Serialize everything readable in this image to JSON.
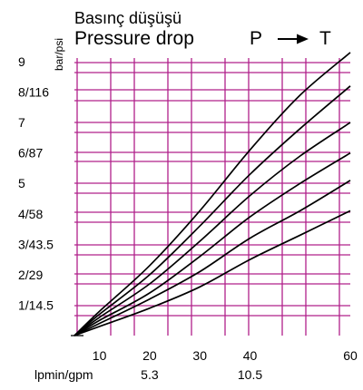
{
  "chart_data": {
    "type": "line",
    "title_line1": "Basınç düşüşü",
    "title_line2": "Pressure drop",
    "flow_from": "P",
    "flow_to": "T",
    "ylabel": "bar/psi",
    "xlabel": "lpmin/gpm",
    "xlim": [
      5,
      60
    ],
    "ylim": [
      0,
      9
    ],
    "x_ticks": [
      {
        "value": 10,
        "label": "10"
      },
      {
        "value": 20,
        "label": "20"
      },
      {
        "value": 30,
        "label": "30"
      },
      {
        "value": 40,
        "label": "40"
      },
      {
        "value": 60,
        "label": "60"
      }
    ],
    "x_secondary_ticks": [
      {
        "value": 20,
        "label": "5.3"
      },
      {
        "value": 40,
        "label": "10.5"
      }
    ],
    "y_ticks": [
      {
        "value": 9,
        "label": "9"
      },
      {
        "value": 8,
        "label": "8/116"
      },
      {
        "value": 7,
        "label": "7"
      },
      {
        "value": 6,
        "label": "6/87"
      },
      {
        "value": 5,
        "label": "5"
      },
      {
        "value": 4,
        "label": "4/58"
      },
      {
        "value": 3,
        "label": "3/43.5"
      },
      {
        "value": 2,
        "label": "2/29"
      },
      {
        "value": 1,
        "label": "1/14.5"
      }
    ],
    "grid": true,
    "grid_color": "#b0208a",
    "series": [
      {
        "values": [
          [
            5,
            0
          ],
          [
            10,
            0.8
          ],
          [
            20,
            2.3
          ],
          [
            30,
            4.1
          ],
          [
            40,
            6.1
          ],
          [
            50,
            7.9
          ],
          [
            60,
            9.3
          ]
        ]
      },
      {
        "values": [
          [
            5,
            0
          ],
          [
            10,
            0.7
          ],
          [
            20,
            2.0
          ],
          [
            30,
            3.6
          ],
          [
            40,
            5.3
          ],
          [
            50,
            6.8
          ],
          [
            60,
            8.2
          ]
        ]
      },
      {
        "values": [
          [
            5,
            0
          ],
          [
            10,
            0.6
          ],
          [
            20,
            1.7
          ],
          [
            30,
            3.1
          ],
          [
            40,
            4.6
          ],
          [
            50,
            5.9
          ],
          [
            60,
            7.0
          ]
        ]
      },
      {
        "values": [
          [
            5,
            0
          ],
          [
            10,
            0.5
          ],
          [
            20,
            1.4
          ],
          [
            30,
            2.6
          ],
          [
            40,
            3.9
          ],
          [
            50,
            5.0
          ],
          [
            60,
            6.0
          ]
        ]
      },
      {
        "values": [
          [
            5,
            0
          ],
          [
            10,
            0.4
          ],
          [
            20,
            1.2
          ],
          [
            30,
            2.1
          ],
          [
            40,
            3.2
          ],
          [
            50,
            4.1
          ],
          [
            60,
            5.1
          ]
        ]
      },
      {
        "values": [
          [
            5,
            0
          ],
          [
            10,
            0.3
          ],
          [
            20,
            0.9
          ],
          [
            30,
            1.6
          ],
          [
            40,
            2.5
          ],
          [
            50,
            3.3
          ],
          [
            60,
            4.1
          ]
        ]
      }
    ]
  }
}
